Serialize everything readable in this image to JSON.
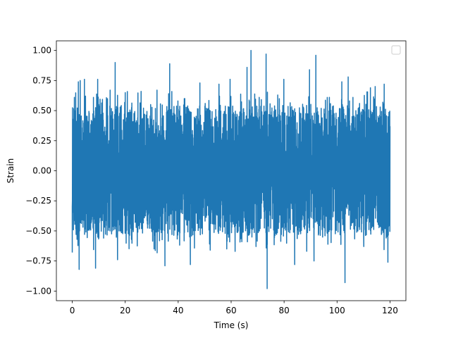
{
  "chart_data": {
    "type": "line",
    "title": "",
    "xlabel": "Time (s)",
    "ylabel": "Strain",
    "xlim": [
      -6,
      126
    ],
    "ylim": [
      -1.08,
      1.08
    ],
    "xticks": [
      0,
      20,
      40,
      60,
      80,
      100,
      120
    ],
    "yticks": [
      -1.0,
      -0.75,
      -0.5,
      -0.25,
      0.0,
      0.25,
      0.5,
      0.75,
      1.0
    ],
    "xtick_labels": [
      "0",
      "20",
      "40",
      "60",
      "80",
      "100",
      "120"
    ],
    "ytick_labels": [
      "−1.00",
      "−0.75",
      "−0.50",
      "−0.25",
      "0.00",
      "0.25",
      "0.50",
      "0.75",
      "1.00"
    ],
    "grid": false,
    "legend": {
      "placement": "top-right",
      "entries": []
    },
    "series": [
      {
        "color": "#1f77b4",
        "x": [
          0,
          120
        ],
        "y_range": [
          -0.98,
          1.0
        ],
        "peaks": [
          {
            "x": 0.0,
            "y": -0.68
          },
          {
            "x": 0.8,
            "y": 0.61
          },
          {
            "x": 1.8,
            "y": -0.57
          },
          {
            "x": 2.3,
            "y": 0.74
          },
          {
            "x": 2.6,
            "y": -0.82
          },
          {
            "x": 3.0,
            "y": 0.75
          },
          {
            "x": 4.6,
            "y": 0.76
          },
          {
            "x": 8.0,
            "y": 0.61
          },
          {
            "x": 8.8,
            "y": -0.81
          },
          {
            "x": 9.6,
            "y": 0.76
          },
          {
            "x": 14.3,
            "y": 0.67
          },
          {
            "x": 16.2,
            "y": 0.9
          },
          {
            "x": 17.1,
            "y": -0.74
          },
          {
            "x": 18.1,
            "y": 0.53
          },
          {
            "x": 20.0,
            "y": 0.65
          },
          {
            "x": 26.0,
            "y": 0.66
          },
          {
            "x": 29.6,
            "y": 0.55
          },
          {
            "x": 30.9,
            "y": -0.65
          },
          {
            "x": 32.0,
            "y": 0.67
          },
          {
            "x": 35.0,
            "y": -0.79
          },
          {
            "x": 36.8,
            "y": 0.89
          },
          {
            "x": 39.9,
            "y": 0.58
          },
          {
            "x": 42.5,
            "y": 0.6
          },
          {
            "x": 44.6,
            "y": -0.78
          },
          {
            "x": 48.2,
            "y": 0.73
          },
          {
            "x": 50.2,
            "y": 0.56
          },
          {
            "x": 52.1,
            "y": -0.66
          },
          {
            "x": 55.4,
            "y": 0.72
          },
          {
            "x": 59.6,
            "y": 0.76
          },
          {
            "x": 61.5,
            "y": -0.67
          },
          {
            "x": 63.6,
            "y": 0.53
          },
          {
            "x": 66.0,
            "y": 0.86
          },
          {
            "x": 67.5,
            "y": 1.0
          },
          {
            "x": 69.4,
            "y": -0.63
          },
          {
            "x": 70.6,
            "y": 0.61
          },
          {
            "x": 73.2,
            "y": 0.97
          },
          {
            "x": 73.6,
            "y": -0.98
          },
          {
            "x": 77.6,
            "y": 0.63
          },
          {
            "x": 79.9,
            "y": 0.76
          },
          {
            "x": 84.0,
            "y": -0.78
          },
          {
            "x": 87.1,
            "y": 0.52
          },
          {
            "x": 89.6,
            "y": 0.84
          },
          {
            "x": 91.3,
            "y": -0.75
          },
          {
            "x": 92.0,
            "y": 0.96
          },
          {
            "x": 95.6,
            "y": 0.55
          },
          {
            "x": 97.1,
            "y": 0.61
          },
          {
            "x": 101.8,
            "y": 0.74
          },
          {
            "x": 103.0,
            "y": -0.93
          },
          {
            "x": 104.2,
            "y": 0.78
          },
          {
            "x": 106.0,
            "y": 0.61
          },
          {
            "x": 108.5,
            "y": 0.56
          },
          {
            "x": 110.1,
            "y": -0.63
          },
          {
            "x": 112.6,
            "y": 0.69
          },
          {
            "x": 114.4,
            "y": 0.7
          },
          {
            "x": 116.3,
            "y": 0.53
          },
          {
            "x": 117.3,
            "y": 0.57
          },
          {
            "x": 117.8,
            "y": 0.72
          },
          {
            "x": 119.2,
            "y": -0.76
          },
          {
            "x": 120.0,
            "y": 0.37
          }
        ]
      }
    ]
  }
}
